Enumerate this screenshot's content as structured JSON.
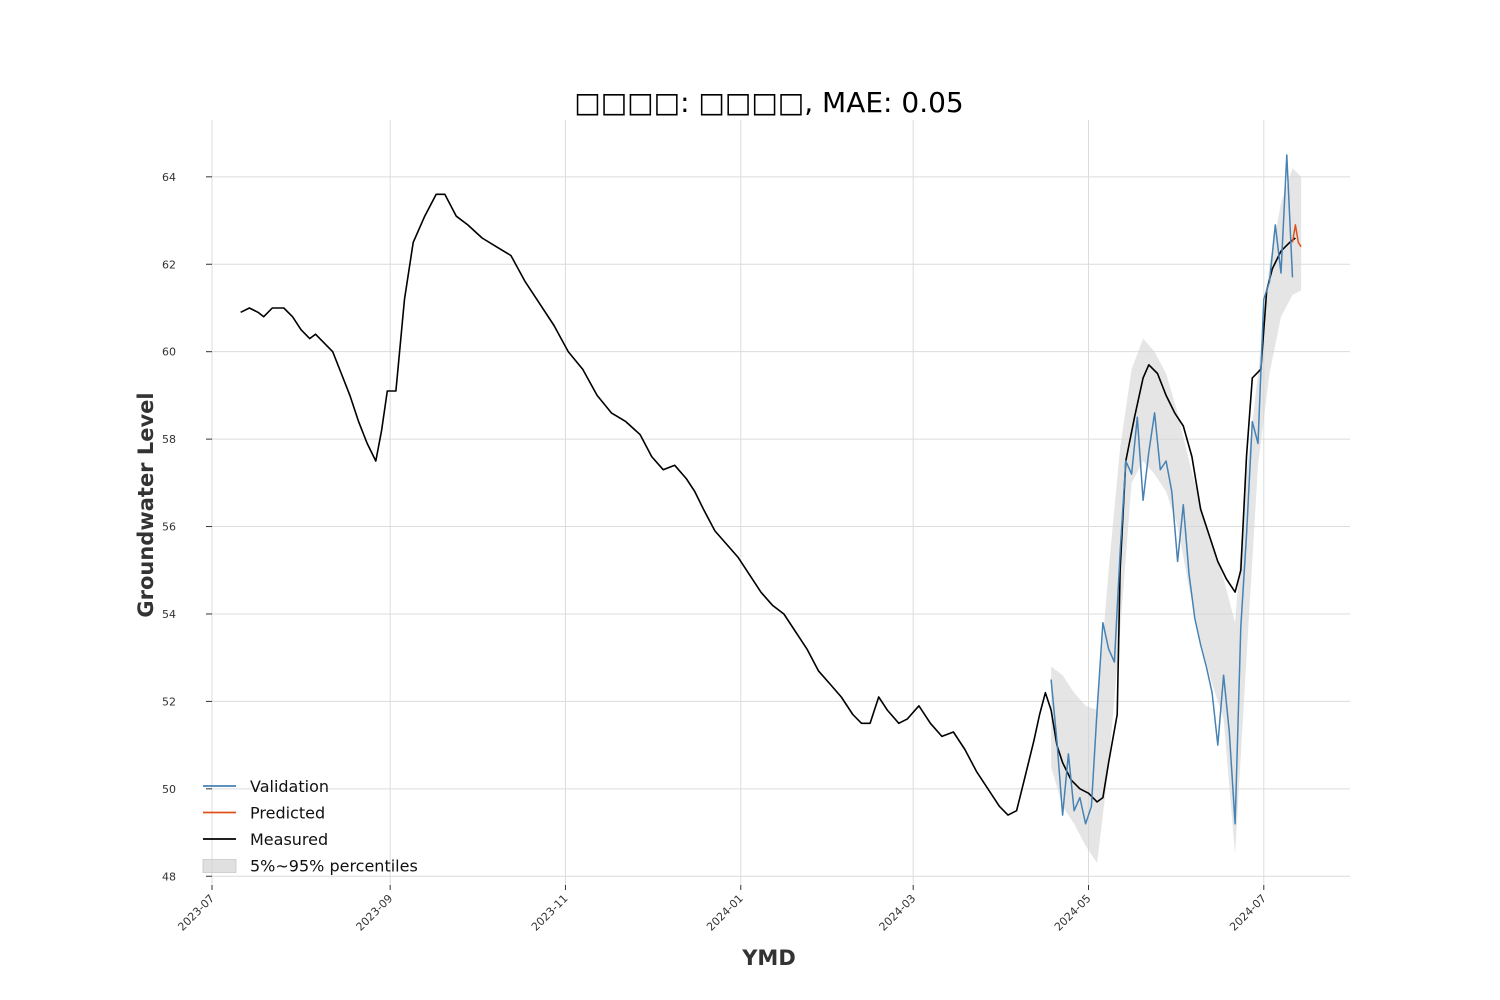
{
  "chart_data": {
    "type": "line",
    "title": "□□□□: □□□□, MAE: 0.05",
    "xlabel": "YMD",
    "ylabel": "Groundwater Level",
    "xlim": [
      "2023-07-01",
      "2024-07-31"
    ],
    "ylim": [
      47.8,
      65.3
    ],
    "x_ticks": [
      "2023-07",
      "2023-09",
      "2023-11",
      "2024-01",
      "2024-03",
      "2024-05",
      "2024-07"
    ],
    "y_ticks": [
      48,
      50,
      52,
      54,
      56,
      58,
      60,
      62,
      64
    ],
    "grid": true,
    "legend_position": "lower-left",
    "colors": {
      "Validation": "#4682b4",
      "Predicted": "#e0501c",
      "Measured": "#000000",
      "band": "#d3d3d3"
    },
    "legend": [
      "Validation",
      "Predicted",
      "Measured",
      "5%~95% percentiles"
    ],
    "series": [
      {
        "name": "Measured",
        "points": [
          [
            "2023-07-11",
            60.9
          ],
          [
            "2023-07-14",
            61.0
          ],
          [
            "2023-07-17",
            60.9
          ],
          [
            "2023-07-19",
            60.8
          ],
          [
            "2023-07-22",
            61.0
          ],
          [
            "2023-07-26",
            61.0
          ],
          [
            "2023-07-29",
            60.8
          ],
          [
            "2023-08-01",
            60.5
          ],
          [
            "2023-08-04",
            60.3
          ],
          [
            "2023-08-06",
            60.4
          ],
          [
            "2023-08-09",
            60.2
          ],
          [
            "2023-08-12",
            60.0
          ],
          [
            "2023-08-15",
            59.5
          ],
          [
            "2023-08-18",
            59.0
          ],
          [
            "2023-08-21",
            58.4
          ],
          [
            "2023-08-24",
            57.9
          ],
          [
            "2023-08-27",
            57.5
          ],
          [
            "2023-08-29",
            58.2
          ],
          [
            "2023-08-31",
            59.1
          ],
          [
            "2023-09-03",
            59.1
          ],
          [
            "2023-09-06",
            61.2
          ],
          [
            "2023-09-09",
            62.5
          ],
          [
            "2023-09-13",
            63.1
          ],
          [
            "2023-09-17",
            63.6
          ],
          [
            "2023-09-20",
            63.6
          ],
          [
            "2023-09-24",
            63.1
          ],
          [
            "2023-09-28",
            62.9
          ],
          [
            "2023-10-03",
            62.6
          ],
          [
            "2023-10-08",
            62.4
          ],
          [
            "2023-10-13",
            62.2
          ],
          [
            "2023-10-18",
            61.6
          ],
          [
            "2023-10-23",
            61.1
          ],
          [
            "2023-10-28",
            60.6
          ],
          [
            "2023-11-02",
            60.0
          ],
          [
            "2023-11-07",
            59.6
          ],
          [
            "2023-11-12",
            59.0
          ],
          [
            "2023-11-17",
            58.6
          ],
          [
            "2023-11-22",
            58.4
          ],
          [
            "2023-11-27",
            58.1
          ],
          [
            "2023-12-01",
            57.6
          ],
          [
            "2023-12-05",
            57.3
          ],
          [
            "2023-12-09",
            57.4
          ],
          [
            "2023-12-13",
            57.1
          ],
          [
            "2023-12-16",
            56.8
          ],
          [
            "2023-12-19",
            56.4
          ],
          [
            "2023-12-23",
            55.9
          ],
          [
            "2023-12-27",
            55.6
          ],
          [
            "2023-12-31",
            55.3
          ],
          [
            "2024-01-04",
            54.9
          ],
          [
            "2024-01-08",
            54.5
          ],
          [
            "2024-01-12",
            54.2
          ],
          [
            "2024-01-16",
            54.0
          ],
          [
            "2024-01-20",
            53.6
          ],
          [
            "2024-01-24",
            53.2
          ],
          [
            "2024-01-28",
            52.7
          ],
          [
            "2024-02-01",
            52.4
          ],
          [
            "2024-02-05",
            52.1
          ],
          [
            "2024-02-09",
            51.7
          ],
          [
            "2024-02-12",
            51.5
          ],
          [
            "2024-02-15",
            51.5
          ],
          [
            "2024-02-18",
            52.1
          ],
          [
            "2024-02-21",
            51.8
          ],
          [
            "2024-02-25",
            51.5
          ],
          [
            "2024-02-28",
            51.6
          ],
          [
            "2024-03-03",
            51.9
          ],
          [
            "2024-03-07",
            51.5
          ],
          [
            "2024-03-11",
            51.2
          ],
          [
            "2024-03-15",
            51.3
          ],
          [
            "2024-03-19",
            50.9
          ],
          [
            "2024-03-23",
            50.4
          ],
          [
            "2024-03-27",
            50.0
          ],
          [
            "2024-03-31",
            49.6
          ],
          [
            "2024-04-03",
            49.4
          ],
          [
            "2024-04-06",
            49.5
          ],
          [
            "2024-04-09",
            50.3
          ],
          [
            "2024-04-12",
            51.1
          ],
          [
            "2024-04-14",
            51.7
          ],
          [
            "2024-04-16",
            52.2
          ],
          [
            "2024-04-18",
            51.8
          ],
          [
            "2024-04-20",
            51.0
          ],
          [
            "2024-04-22",
            50.6
          ],
          [
            "2024-04-25",
            50.2
          ],
          [
            "2024-04-28",
            50.0
          ],
          [
            "2024-05-01",
            49.9
          ],
          [
            "2024-05-04",
            49.7
          ],
          [
            "2024-05-06",
            49.8
          ],
          [
            "2024-05-08",
            50.6
          ],
          [
            "2024-05-11",
            51.7
          ],
          [
            "2024-05-12",
            55.0
          ],
          [
            "2024-05-14",
            57.5
          ],
          [
            "2024-05-17",
            58.5
          ],
          [
            "2024-05-20",
            59.4
          ],
          [
            "2024-05-22",
            59.7
          ],
          [
            "2024-05-25",
            59.5
          ],
          [
            "2024-05-28",
            59.0
          ],
          [
            "2024-05-31",
            58.6
          ],
          [
            "2024-06-03",
            58.3
          ],
          [
            "2024-06-06",
            57.6
          ],
          [
            "2024-06-09",
            56.4
          ],
          [
            "2024-06-12",
            55.8
          ],
          [
            "2024-06-15",
            55.2
          ],
          [
            "2024-06-18",
            54.8
          ],
          [
            "2024-06-21",
            54.5
          ],
          [
            "2024-06-23",
            55.0
          ],
          [
            "2024-06-25",
            57.6
          ],
          [
            "2024-06-27",
            59.4
          ],
          [
            "2024-06-30",
            59.6
          ],
          [
            "2024-07-02",
            61.4
          ],
          [
            "2024-07-04",
            61.9
          ],
          [
            "2024-07-07",
            62.3
          ],
          [
            "2024-07-10",
            62.5
          ],
          [
            "2024-07-12",
            62.6
          ]
        ]
      },
      {
        "name": "Validation",
        "points": [
          [
            "2024-04-18",
            52.5
          ],
          [
            "2024-04-20",
            51.1
          ],
          [
            "2024-04-22",
            49.4
          ],
          [
            "2024-04-24",
            50.8
          ],
          [
            "2024-04-26",
            49.5
          ],
          [
            "2024-04-28",
            49.8
          ],
          [
            "2024-04-30",
            49.2
          ],
          [
            "2024-05-02",
            49.6
          ],
          [
            "2024-05-04",
            51.8
          ],
          [
            "2024-05-06",
            53.8
          ],
          [
            "2024-05-08",
            53.2
          ],
          [
            "2024-05-10",
            52.9
          ],
          [
            "2024-05-12",
            55.4
          ],
          [
            "2024-05-14",
            57.5
          ],
          [
            "2024-05-16",
            57.2
          ],
          [
            "2024-05-18",
            58.5
          ],
          [
            "2024-05-20",
            56.6
          ],
          [
            "2024-05-22",
            57.7
          ],
          [
            "2024-05-24",
            58.6
          ],
          [
            "2024-05-26",
            57.3
          ],
          [
            "2024-05-28",
            57.5
          ],
          [
            "2024-05-30",
            56.8
          ],
          [
            "2024-06-01",
            55.2
          ],
          [
            "2024-06-03",
            56.5
          ],
          [
            "2024-06-05",
            54.9
          ],
          [
            "2024-06-07",
            53.9
          ],
          [
            "2024-06-09",
            53.3
          ],
          [
            "2024-06-11",
            52.8
          ],
          [
            "2024-06-13",
            52.2
          ],
          [
            "2024-06-15",
            51.0
          ],
          [
            "2024-06-17",
            52.6
          ],
          [
            "2024-06-19",
            51.3
          ],
          [
            "2024-06-21",
            49.2
          ],
          [
            "2024-06-23",
            53.7
          ],
          [
            "2024-06-25",
            55.8
          ],
          [
            "2024-06-27",
            58.4
          ],
          [
            "2024-06-29",
            57.9
          ],
          [
            "2024-07-01",
            61.2
          ],
          [
            "2024-07-03",
            61.6
          ],
          [
            "2024-07-05",
            62.9
          ],
          [
            "2024-07-07",
            61.8
          ],
          [
            "2024-07-09",
            64.5
          ],
          [
            "2024-07-11",
            61.7
          ]
        ]
      },
      {
        "name": "Predicted",
        "points": [
          [
            "2024-07-11",
            62.5
          ],
          [
            "2024-07-12",
            62.9
          ],
          [
            "2024-07-13",
            62.5
          ],
          [
            "2024-07-14",
            62.4
          ]
        ]
      }
    ],
    "band": {
      "name": "5%~95% percentiles",
      "points": [
        [
          "2024-04-18",
          52.8,
          50.5
        ],
        [
          "2024-04-22",
          52.6,
          49.6
        ],
        [
          "2024-04-26",
          52.2,
          49.2
        ],
        [
          "2024-04-30",
          51.9,
          48.7
        ],
        [
          "2024-05-04",
          51.8,
          48.3
        ],
        [
          "2024-05-08",
          55.0,
          50.5
        ],
        [
          "2024-05-12",
          57.8,
          53.6
        ],
        [
          "2024-05-16",
          59.6,
          57.0
        ],
        [
          "2024-05-20",
          60.3,
          57.5
        ],
        [
          "2024-05-24",
          60.0,
          57.2
        ],
        [
          "2024-05-28",
          59.5,
          56.8
        ],
        [
          "2024-06-01",
          58.6,
          56.0
        ],
        [
          "2024-06-05",
          57.5,
          54.6
        ],
        [
          "2024-06-09",
          56.5,
          53.4
        ],
        [
          "2024-06-13",
          55.6,
          52.4
        ],
        [
          "2024-06-17",
          54.8,
          51.6
        ],
        [
          "2024-06-21",
          53.8,
          48.5
        ],
        [
          "2024-06-25",
          57.2,
          53.0
        ],
        [
          "2024-06-29",
          59.5,
          57.4
        ],
        [
          "2024-07-03",
          62.0,
          59.5
        ],
        [
          "2024-07-07",
          63.4,
          60.8
        ],
        [
          "2024-07-11",
          64.2,
          61.3
        ],
        [
          "2024-07-14",
          64.0,
          61.4
        ]
      ]
    }
  }
}
